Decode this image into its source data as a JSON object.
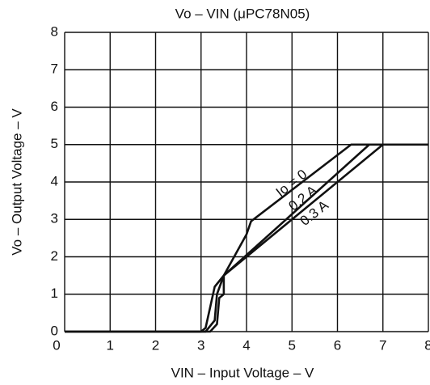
{
  "chart_data": {
    "type": "line",
    "title": "Vo – VIN (μPC78N05)",
    "x_label": "VIN – Input Voltage – V",
    "y_label": "Vo – Output Voltage – V",
    "xlim": [
      0,
      8
    ],
    "ylim": [
      0,
      8
    ],
    "xticks": [
      0,
      1,
      2,
      3,
      4,
      5,
      6,
      7,
      8
    ],
    "yticks": [
      0,
      1,
      2,
      3,
      4,
      5,
      6,
      7,
      8
    ],
    "grid": true,
    "series": [
      {
        "name": "Io = 0",
        "color": "#111111",
        "x": [
          0,
          3.0,
          3.1,
          3.3,
          3.5,
          4.0,
          4.1,
          6.3,
          8
        ],
        "values": [
          0,
          0,
          0.1,
          1.2,
          1.5,
          2.6,
          2.95,
          5,
          5
        ]
      },
      {
        "name": "0.2 A",
        "color": "#111111",
        "x": [
          0,
          3.1,
          3.3,
          3.35,
          3.5,
          6.7,
          8
        ],
        "values": [
          0,
          0,
          0.3,
          1.0,
          1.5,
          5,
          5
        ]
      },
      {
        "name": "0.3 A",
        "color": "#111111",
        "x": [
          0,
          3.2,
          3.35,
          3.4,
          3.5,
          3.5,
          7.0,
          8
        ],
        "values": [
          0,
          0,
          0.2,
          0.9,
          1.0,
          1.5,
          5,
          5
        ]
      }
    ]
  }
}
